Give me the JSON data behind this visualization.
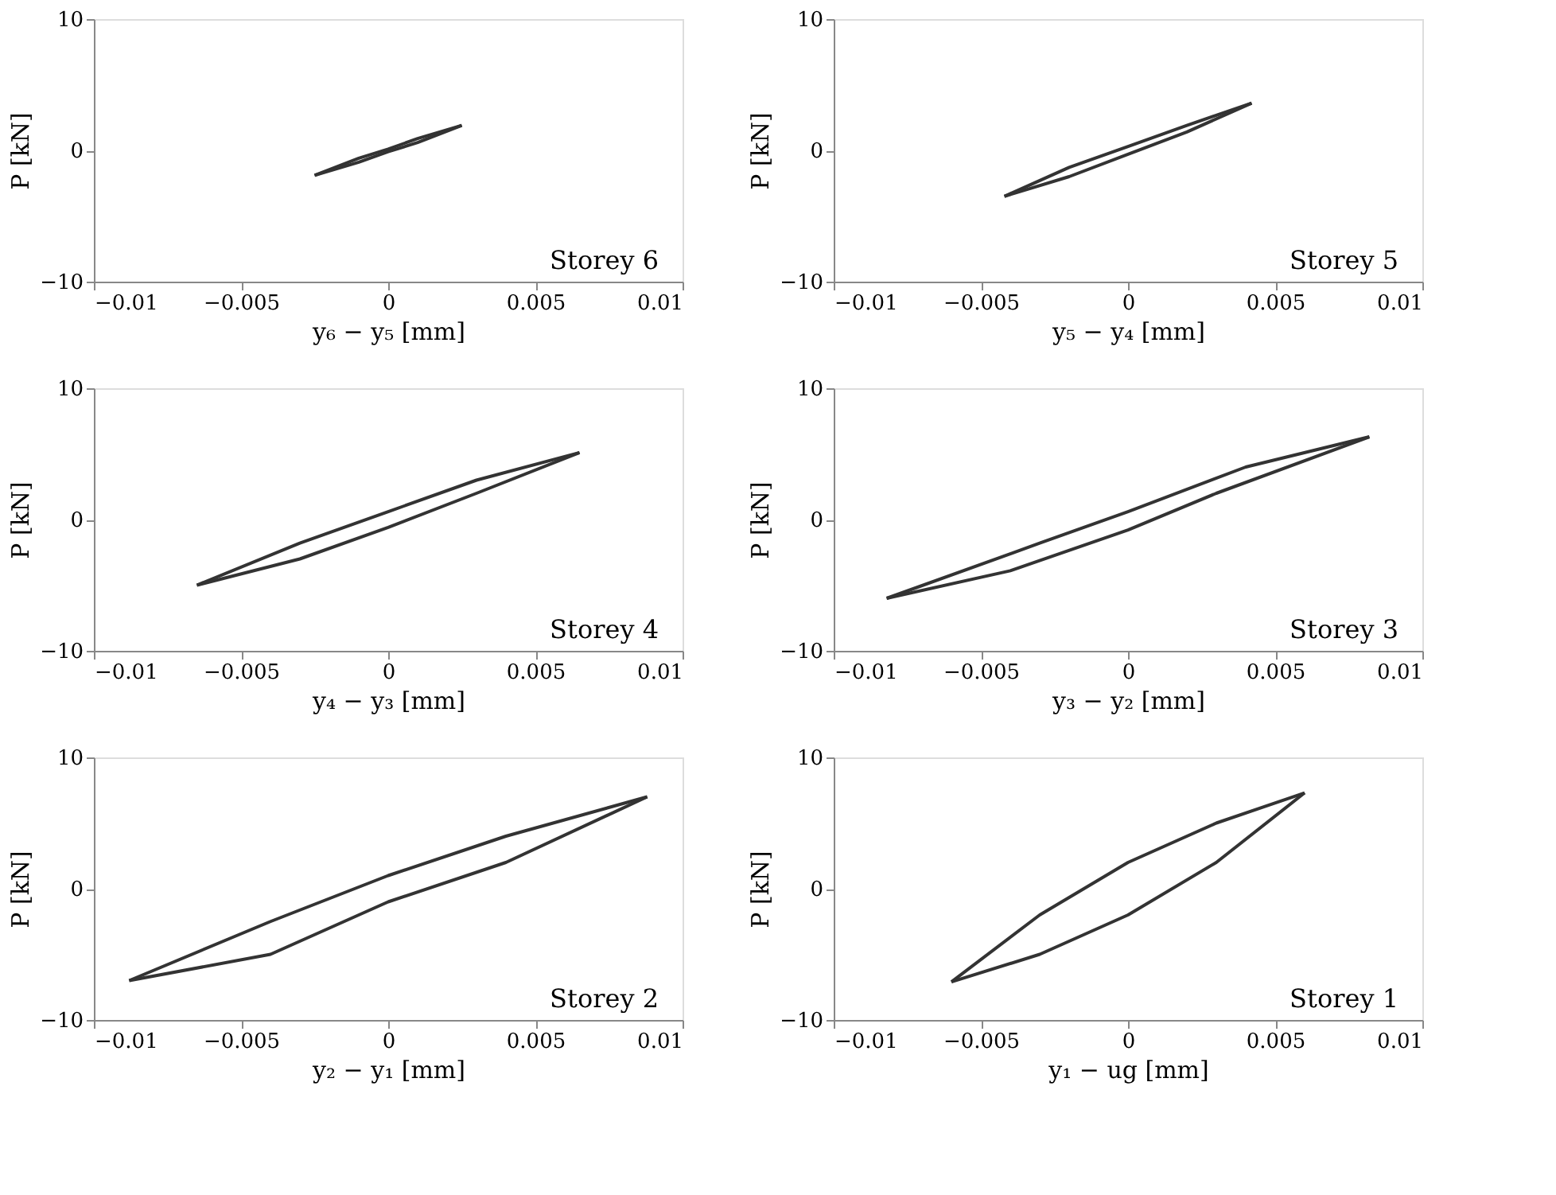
{
  "chart_data": [
    {
      "type": "line",
      "xlabel": "y₆ − y₅ [mm]",
      "ylabel": "P [kN]",
      "xlim": [
        -0.01,
        0.01
      ],
      "xticks": [
        -0.01,
        -0.005,
        0,
        0.005,
        0.01
      ],
      "ylim": [
        -10,
        10
      ],
      "yticks": [
        -10,
        0,
        10
      ],
      "grid": false,
      "annotations": [
        "Storey 6"
      ],
      "series": [
        {
          "color": "#333333",
          "x": [
            -0.0025,
            -0.001,
            0.0,
            0.001,
            0.0025
          ],
          "values": [
            -1.9,
            -0.6,
            0.1,
            0.9,
            1.9
          ]
        },
        {
          "color": "#333333",
          "x": [
            -0.0025,
            -0.001,
            0.0,
            0.001,
            0.0025
          ],
          "values": [
            -1.9,
            -0.9,
            -0.1,
            0.6,
            1.9
          ]
        }
      ]
    },
    {
      "type": "line",
      "xlabel": "y₅ − y₄ [mm]",
      "ylabel": "P [kN]",
      "xlim": [
        -0.01,
        0.01
      ],
      "xticks": [
        -0.01,
        -0.005,
        0,
        0.005,
        0.01
      ],
      "ylim": [
        -10,
        10
      ],
      "yticks": [
        -10,
        0,
        10
      ],
      "grid": false,
      "annotations": [
        "Storey 5"
      ],
      "series": [
        {
          "color": "#333333",
          "x": [
            -0.0042,
            -0.002,
            0.0,
            0.002,
            0.0042
          ],
          "values": [
            -3.5,
            -1.3,
            0.3,
            1.9,
            3.6
          ]
        },
        {
          "color": "#333333",
          "x": [
            -0.0042,
            -0.002,
            0.0,
            0.002,
            0.0042
          ],
          "values": [
            -3.5,
            -2.0,
            -0.3,
            1.4,
            3.6
          ]
        }
      ]
    },
    {
      "type": "line",
      "xlabel": "y₄ − y₃ [mm]",
      "ylabel": "P [kN]",
      "xlim": [
        -0.01,
        0.01
      ],
      "xticks": [
        -0.01,
        -0.005,
        0,
        0.005,
        0.01
      ],
      "ylim": [
        -10,
        10
      ],
      "yticks": [
        -10,
        0,
        10
      ],
      "grid": false,
      "annotations": [
        "Storey 4"
      ],
      "series": [
        {
          "color": "#333333",
          "x": [
            -0.0065,
            -0.003,
            0.0,
            0.003,
            0.0065
          ],
          "values": [
            -5.0,
            -1.8,
            0.6,
            3.0,
            5.1
          ]
        },
        {
          "color": "#333333",
          "x": [
            -0.0065,
            -0.003,
            0.0,
            0.003,
            0.0065
          ],
          "values": [
            -5.0,
            -3.0,
            -0.6,
            2.0,
            5.1
          ]
        }
      ]
    },
    {
      "type": "line",
      "xlabel": "y₃ − y₂ [mm]",
      "ylabel": "P [kN]",
      "xlim": [
        -0.01,
        0.01
      ],
      "xticks": [
        -0.01,
        -0.005,
        0,
        0.005,
        0.01
      ],
      "ylim": [
        -10,
        10
      ],
      "yticks": [
        -10,
        0,
        10
      ],
      "grid": false,
      "annotations": [
        "Storey 3"
      ],
      "series": [
        {
          "color": "#333333",
          "x": [
            -0.0082,
            -0.003,
            0.0,
            0.004,
            0.0082
          ],
          "values": [
            -6.0,
            -1.8,
            0.6,
            4.0,
            6.3
          ]
        },
        {
          "color": "#333333",
          "x": [
            -0.0082,
            -0.004,
            0.0,
            0.003,
            0.0082
          ],
          "values": [
            -6.0,
            -3.9,
            -0.8,
            2.0,
            6.3
          ]
        }
      ]
    },
    {
      "type": "line",
      "xlabel": "y₂ − y₁ [mm]",
      "ylabel": "P [kN]",
      "xlim": [
        -0.01,
        0.01
      ],
      "xticks": [
        -0.01,
        -0.005,
        0,
        0.005,
        0.01
      ],
      "ylim": [
        -10,
        10
      ],
      "yticks": [
        -10,
        0,
        10
      ],
      "grid": false,
      "annotations": [
        "Storey 2"
      ],
      "series": [
        {
          "color": "#333333",
          "x": [
            -0.0088,
            -0.004,
            0.0,
            0.004,
            0.0088
          ],
          "values": [
            -7.0,
            -2.5,
            1.0,
            4.0,
            7.0
          ]
        },
        {
          "color": "#333333",
          "x": [
            -0.0088,
            -0.004,
            0.0,
            0.004,
            0.0088
          ],
          "values": [
            -7.0,
            -5.0,
            -1.0,
            2.0,
            7.0
          ]
        }
      ]
    },
    {
      "type": "line",
      "xlabel": "y₁ − ug [mm]",
      "ylabel": "P [kN]",
      "xlim": [
        -0.01,
        0.01
      ],
      "xticks": [
        -0.01,
        -0.005,
        0,
        0.005,
        0.01
      ],
      "ylim": [
        -10,
        10
      ],
      "yticks": [
        -10,
        0,
        10
      ],
      "grid": false,
      "annotations": [
        "Storey 1"
      ],
      "series": [
        {
          "color": "#333333",
          "x": [
            -0.006,
            -0.003,
            0.0,
            0.003,
            0.006
          ],
          "values": [
            -7.1,
            -2.0,
            2.0,
            5.0,
            7.3
          ]
        },
        {
          "color": "#333333",
          "x": [
            -0.006,
            -0.003,
            0.0,
            0.003,
            0.006
          ],
          "values": [
            -7.1,
            -5.0,
            -2.0,
            2.0,
            7.3
          ]
        }
      ]
    }
  ]
}
